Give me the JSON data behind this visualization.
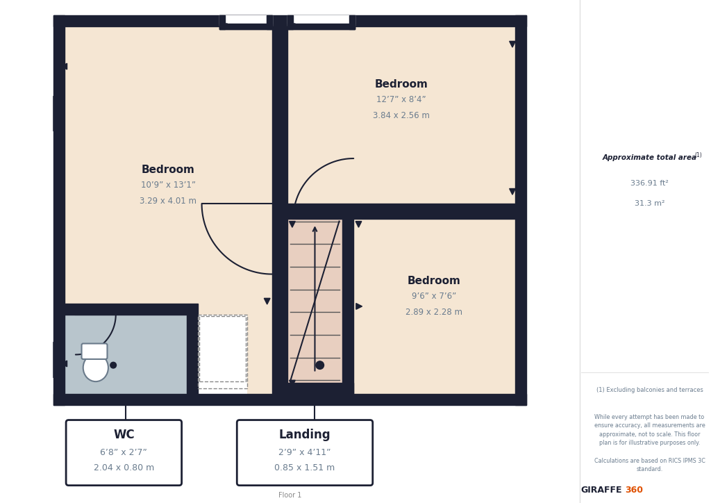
{
  "bg_color": "#ffffff",
  "wall_color": "#1c2033",
  "room_fill": "#f5e6d3",
  "landing_fill": "#e8cfc0",
  "wc_fill": "#b8c5cc",
  "title": "Floor 1",
  "area_label": "Approximate total area",
  "area_sup": "(1)",
  "area_ft": "336.91 ft²",
  "area_m": "31.3 m²",
  "footnote1": "(1) Excluding balconies and terraces",
  "footnote2": "While every attempt has been made to\nensure accuracy, all measurements are\napproximate, not to scale. This floor\nplan is for illustrative purposes only.",
  "footnote3": "Calculations are based on RICS IPMS 3C\nstandard.",
  "brand": "GIRAFFE360",
  "rooms": {
    "bedroom1": {
      "label": "Bedroom",
      "dim1": "10’9” x 13’1”",
      "dim2": "3.29 x 4.01 m"
    },
    "bedroom2": {
      "label": "Bedroom",
      "dim1": "12’7” x 8’4”",
      "dim2": "3.84 x 2.56 m"
    },
    "bedroom3": {
      "label": "Bedroom",
      "dim1": "9’6” x 7’6”",
      "dim2": "2.89 x 2.28 m"
    },
    "wc": {
      "label": "WC",
      "dim1": "6’8” x 2’7”",
      "dim2": "2.04 x 0.80 m"
    },
    "landing": {
      "label": "Landing",
      "dim1": "2’9” x 4’11”",
      "dim2": "0.85 x 1.51 m"
    }
  }
}
